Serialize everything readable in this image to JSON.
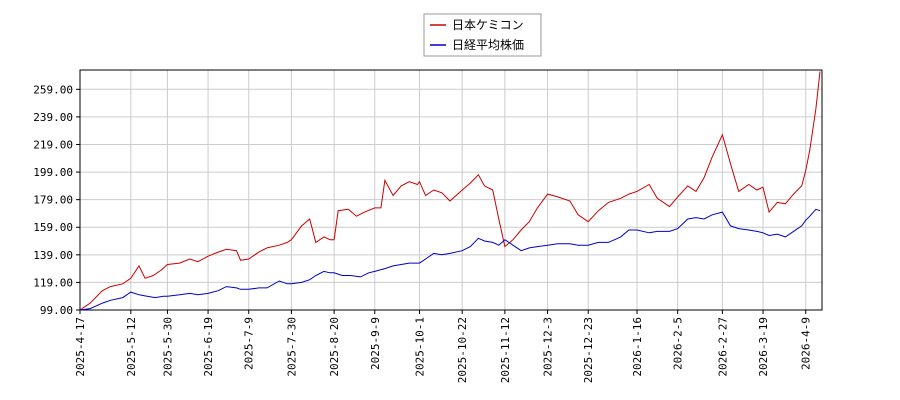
{
  "chart_data": {
    "type": "line",
    "ylim": [
      99.0,
      273.0
    ],
    "yticks": [
      "259.00",
      "239.00",
      "219.00",
      "199.00",
      "179.00",
      "159.00",
      "139.00",
      "119.00",
      "99.00"
    ],
    "ytick_values": [
      259,
      239,
      219,
      199,
      179,
      159,
      139,
      119,
      99
    ],
    "xticks": [
      "2025-4-17",
      "2025-5-12",
      "2025-5-30",
      "2025-6-19",
      "2025-7-9",
      "2025-7-30",
      "2025-8-20",
      "2025-9-9",
      "2025-10-1",
      "2025-10-22",
      "2025-11-12",
      "2025-12-3",
      "2025-12-23",
      "2026-1-16",
      "2026-2-5",
      "2026-2-27",
      "2026-3-19",
      "2026-4-9"
    ],
    "x_range": [
      "2025-4-17",
      "2026-4-17"
    ],
    "grid": true,
    "legend_position": "top-center",
    "series": [
      {
        "name": "日本ケミコン",
        "color": "#cc0000",
        "points": [
          [
            "2025-4-17",
            99
          ],
          [
            "2025-4-22",
            104
          ],
          [
            "2025-4-28",
            113
          ],
          [
            "2025-5-2",
            116
          ],
          [
            "2025-5-8",
            118
          ],
          [
            "2025-5-12",
            122
          ],
          [
            "2025-5-16",
            131
          ],
          [
            "2025-5-19",
            122
          ],
          [
            "2025-5-23",
            124
          ],
          [
            "2025-5-27",
            128
          ],
          [
            "2025-5-30",
            132
          ],
          [
            "2025-6-5",
            133
          ],
          [
            "2025-6-10",
            136
          ],
          [
            "2025-6-14",
            134
          ],
          [
            "2025-6-19",
            138
          ],
          [
            "2025-6-24",
            141
          ],
          [
            "2025-6-28",
            143
          ],
          [
            "2025-7-3",
            142
          ],
          [
            "2025-7-5",
            135
          ],
          [
            "2025-7-9",
            136
          ],
          [
            "2025-7-14",
            141
          ],
          [
            "2025-7-18",
            144
          ],
          [
            "2025-7-24",
            146
          ],
          [
            "2025-7-28",
            148
          ],
          [
            "2025-7-30",
            150
          ],
          [
            "2025-8-4",
            160
          ],
          [
            "2025-8-8",
            165
          ],
          [
            "2025-8-11",
            148
          ],
          [
            "2025-8-15",
            152
          ],
          [
            "2025-8-18",
            150
          ],
          [
            "2025-8-20",
            150
          ],
          [
            "2025-8-22",
            171
          ],
          [
            "2025-8-27",
            172
          ],
          [
            "2025-8-31",
            167
          ],
          [
            "2025-9-4",
            170
          ],
          [
            "2025-9-9",
            173
          ],
          [
            "2025-9-12",
            173
          ],
          [
            "2025-9-14",
            193
          ],
          [
            "2025-9-18",
            182
          ],
          [
            "2025-9-22",
            189
          ],
          [
            "2025-9-26",
            192
          ],
          [
            "2025-9-30",
            190
          ],
          [
            "2025-10-1",
            192
          ],
          [
            "2025-10-4",
            182
          ],
          [
            "2025-10-8",
            186
          ],
          [
            "2025-10-12",
            184
          ],
          [
            "2025-10-16",
            178
          ],
          [
            "2025-10-22",
            186
          ],
          [
            "2025-10-26",
            191
          ],
          [
            "2025-10-30",
            197
          ],
          [
            "2025-11-2",
            189
          ],
          [
            "2025-11-6",
            186
          ],
          [
            "2025-11-9",
            165
          ],
          [
            "2025-11-12",
            145
          ],
          [
            "2025-11-16",
            150
          ],
          [
            "2025-11-20",
            157
          ],
          [
            "2025-11-24",
            163
          ],
          [
            "2025-11-28",
            173
          ],
          [
            "2025-12-3",
            183
          ],
          [
            "2025-12-8",
            181
          ],
          [
            "2025-12-14",
            178
          ],
          [
            "2025-12-18",
            168
          ],
          [
            "2025-12-23",
            163
          ],
          [
            "2025-12-28",
            171
          ],
          [
            "2026-1-2",
            177
          ],
          [
            "2026-1-8",
            180
          ],
          [
            "2026-1-12",
            183
          ],
          [
            "2026-1-16",
            185
          ],
          [
            "2026-1-22",
            190
          ],
          [
            "2026-1-26",
            180
          ],
          [
            "2026-2-1",
            174
          ],
          [
            "2026-2-5",
            181
          ],
          [
            "2026-2-10",
            189
          ],
          [
            "2026-2-14",
            185
          ],
          [
            "2026-2-18",
            195
          ],
          [
            "2026-2-22",
            210
          ],
          [
            "2026-2-27",
            226
          ],
          [
            "2026-3-3",
            205
          ],
          [
            "2026-3-7",
            185
          ],
          [
            "2026-3-12",
            190
          ],
          [
            "2026-3-16",
            186
          ],
          [
            "2026-3-19",
            188
          ],
          [
            "2026-3-22",
            170
          ],
          [
            "2026-3-26",
            177
          ],
          [
            "2026-3-30",
            176
          ],
          [
            "2026-4-3",
            183
          ],
          [
            "2026-4-7",
            189
          ],
          [
            "2026-4-9",
            200
          ],
          [
            "2026-4-11",
            215
          ],
          [
            "2026-4-14",
            245
          ],
          [
            "2026-4-16",
            272
          ]
        ]
      },
      {
        "name": "日経平均株価",
        "color": "#0000cc",
        "points": [
          [
            "2025-4-17",
            99
          ],
          [
            "2025-4-22",
            100
          ],
          [
            "2025-4-28",
            104
          ],
          [
            "2025-5-2",
            106
          ],
          [
            "2025-5-8",
            108
          ],
          [
            "2025-5-12",
            112
          ],
          [
            "2025-5-16",
            110
          ],
          [
            "2025-5-20",
            109
          ],
          [
            "2025-5-24",
            108
          ],
          [
            "2025-5-28",
            109
          ],
          [
            "2025-5-30",
            109
          ],
          [
            "2025-6-5",
            110
          ],
          [
            "2025-6-10",
            111
          ],
          [
            "2025-6-14",
            110
          ],
          [
            "2025-6-19",
            111
          ],
          [
            "2025-6-24",
            113
          ],
          [
            "2025-6-28",
            116
          ],
          [
            "2025-7-3",
            115
          ],
          [
            "2025-7-5",
            114
          ],
          [
            "2025-7-9",
            114
          ],
          [
            "2025-7-14",
            115
          ],
          [
            "2025-7-18",
            115
          ],
          [
            "2025-7-24",
            120
          ],
          [
            "2025-7-28",
            118
          ],
          [
            "2025-7-30",
            118
          ],
          [
            "2025-8-4",
            119
          ],
          [
            "2025-8-8",
            121
          ],
          [
            "2025-8-11",
            124
          ],
          [
            "2025-8-15",
            127
          ],
          [
            "2025-8-18",
            126
          ],
          [
            "2025-8-20",
            126
          ],
          [
            "2025-8-24",
            124
          ],
          [
            "2025-8-28",
            124
          ],
          [
            "2025-9-2",
            123
          ],
          [
            "2025-9-6",
            126
          ],
          [
            "2025-9-9",
            127
          ],
          [
            "2025-9-14",
            129
          ],
          [
            "2025-9-18",
            131
          ],
          [
            "2025-9-22",
            132
          ],
          [
            "2025-9-26",
            133
          ],
          [
            "2025-10-1",
            133
          ],
          [
            "2025-10-4",
            136
          ],
          [
            "2025-10-8",
            140
          ],
          [
            "2025-10-12",
            139
          ],
          [
            "2025-10-16",
            140
          ],
          [
            "2025-10-22",
            142
          ],
          [
            "2025-10-26",
            145
          ],
          [
            "2025-10-30",
            151
          ],
          [
            "2025-11-2",
            149
          ],
          [
            "2025-11-6",
            148
          ],
          [
            "2025-11-9",
            146
          ],
          [
            "2025-11-12",
            150
          ],
          [
            "2025-11-16",
            146
          ],
          [
            "2025-11-20",
            142
          ],
          [
            "2025-11-24",
            144
          ],
          [
            "2025-11-28",
            145
          ],
          [
            "2025-12-3",
            146
          ],
          [
            "2025-12-8",
            147
          ],
          [
            "2025-12-14",
            147
          ],
          [
            "2025-12-18",
            146
          ],
          [
            "2025-12-23",
            146
          ],
          [
            "2025-12-28",
            148
          ],
          [
            "2026-1-2",
            148
          ],
          [
            "2026-1-8",
            152
          ],
          [
            "2026-1-12",
            157
          ],
          [
            "2026-1-16",
            157
          ],
          [
            "2026-1-22",
            155
          ],
          [
            "2026-1-26",
            156
          ],
          [
            "2026-2-1",
            156
          ],
          [
            "2026-2-5",
            158
          ],
          [
            "2026-2-10",
            165
          ],
          [
            "2026-2-14",
            166
          ],
          [
            "2026-2-18",
            165
          ],
          [
            "2026-2-22",
            168
          ],
          [
            "2026-2-27",
            170
          ],
          [
            "2026-3-3",
            160
          ],
          [
            "2026-3-7",
            158
          ],
          [
            "2026-3-12",
            157
          ],
          [
            "2026-3-16",
            156
          ],
          [
            "2026-3-19",
            155
          ],
          [
            "2026-3-22",
            153
          ],
          [
            "2026-3-26",
            154
          ],
          [
            "2026-3-30",
            152
          ],
          [
            "2026-4-3",
            156
          ],
          [
            "2026-4-7",
            160
          ],
          [
            "2026-4-9",
            164
          ],
          [
            "2026-4-11",
            167
          ],
          [
            "2026-4-14",
            172
          ],
          [
            "2026-4-16",
            171
          ]
        ]
      }
    ]
  }
}
